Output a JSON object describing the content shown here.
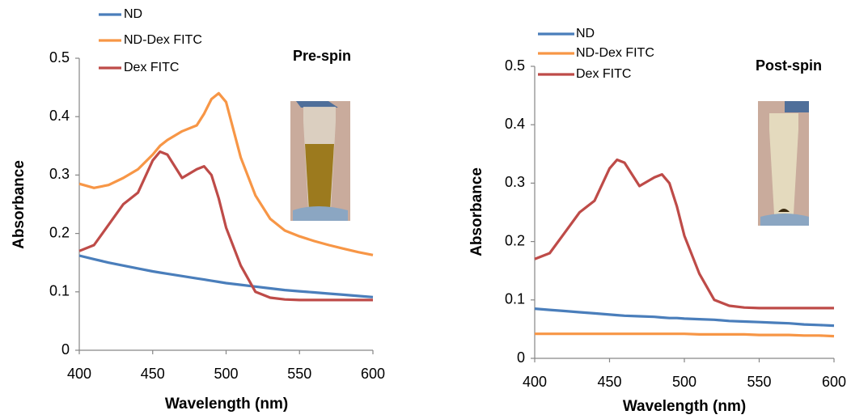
{
  "chart_data": [
    {
      "type": "line",
      "annotation": "Pre-spin",
      "x_label": "Wavelength (nm)",
      "y_label": "Absorbance",
      "x": [
        400,
        410,
        420,
        430,
        440,
        450,
        455,
        460,
        470,
        480,
        485,
        490,
        495,
        500,
        510,
        520,
        530,
        540,
        550,
        560,
        570,
        580,
        590,
        600
      ],
      "xlim": [
        400,
        600
      ],
      "xticks": [
        400,
        450,
        500,
        550,
        600
      ],
      "ylim": [
        0,
        0.5
      ],
      "yticks": [
        0,
        0.1,
        0.2,
        0.3,
        0.4,
        0.5
      ],
      "series": [
        {
          "name": "ND",
          "color": "#4a7ebb",
          "values": [
            0.162,
            0.156,
            0.15,
            0.145,
            0.14,
            0.135,
            0.133,
            0.131,
            0.127,
            0.123,
            0.121,
            0.119,
            0.117,
            0.115,
            0.112,
            0.109,
            0.106,
            0.103,
            0.101,
            0.099,
            0.097,
            0.095,
            0.093,
            0.091
          ]
        },
        {
          "name": "ND-Dex FITC",
          "color": "#f79646",
          "values": [
            0.285,
            0.278,
            0.283,
            0.295,
            0.31,
            0.335,
            0.35,
            0.36,
            0.375,
            0.385,
            0.405,
            0.43,
            0.44,
            0.425,
            0.33,
            0.265,
            0.225,
            0.205,
            0.195,
            0.187,
            0.18,
            0.174,
            0.168,
            0.163
          ]
        },
        {
          "name": "Dex FITC",
          "color": "#be4b48",
          "values": [
            0.17,
            0.18,
            0.215,
            0.25,
            0.27,
            0.325,
            0.34,
            0.335,
            0.295,
            0.31,
            0.315,
            0.3,
            0.26,
            0.21,
            0.145,
            0.1,
            0.09,
            0.087,
            0.086,
            0.086,
            0.086,
            0.086,
            0.086,
            0.086
          ]
        }
      ]
    },
    {
      "type": "line",
      "annotation": "Post-spin",
      "x_label": "Wavelength (nm)",
      "y_label": "Absorbance",
      "x": [
        400,
        410,
        420,
        430,
        440,
        450,
        455,
        460,
        470,
        480,
        485,
        490,
        495,
        500,
        510,
        520,
        530,
        540,
        550,
        560,
        570,
        580,
        590,
        600
      ],
      "xlim": [
        400,
        600
      ],
      "xticks": [
        400,
        450,
        500,
        550,
        600
      ],
      "ylim": [
        0,
        0.5
      ],
      "yticks": [
        0,
        0.1,
        0.2,
        0.3,
        0.4,
        0.5
      ],
      "series": [
        {
          "name": "ND",
          "color": "#4a7ebb",
          "values": [
            0.085,
            0.083,
            0.081,
            0.079,
            0.077,
            0.075,
            0.074,
            0.073,
            0.072,
            0.071,
            0.07,
            0.069,
            0.069,
            0.068,
            0.067,
            0.066,
            0.064,
            0.063,
            0.062,
            0.061,
            0.06,
            0.058,
            0.057,
            0.056
          ]
        },
        {
          "name": "ND-Dex FITC",
          "color": "#f79646",
          "values": [
            0.042,
            0.042,
            0.042,
            0.042,
            0.042,
            0.042,
            0.042,
            0.042,
            0.042,
            0.042,
            0.042,
            0.042,
            0.042,
            0.042,
            0.041,
            0.041,
            0.041,
            0.041,
            0.04,
            0.04,
            0.04,
            0.039,
            0.039,
            0.038
          ]
        },
        {
          "name": "Dex FITC",
          "color": "#be4b48",
          "values": [
            0.17,
            0.18,
            0.215,
            0.25,
            0.27,
            0.325,
            0.34,
            0.335,
            0.295,
            0.31,
            0.315,
            0.3,
            0.26,
            0.21,
            0.145,
            0.1,
            0.09,
            0.087,
            0.086,
            0.086,
            0.086,
            0.086,
            0.086,
            0.086
          ]
        }
      ]
    }
  ]
}
